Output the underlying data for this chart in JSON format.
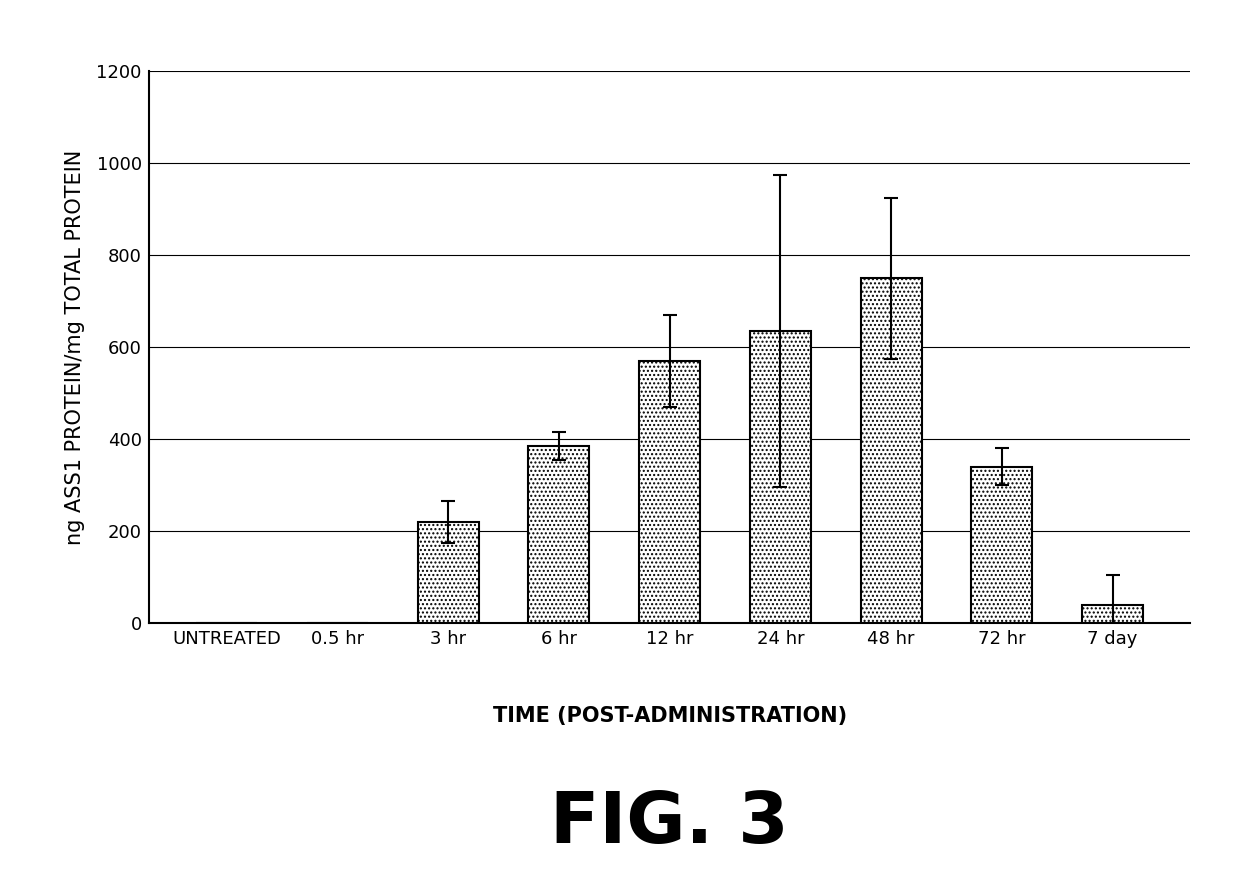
{
  "categories": [
    "UNTREATED",
    "0.5 hr",
    "3 hr",
    "6 hr",
    "12 hr",
    "24 hr",
    "48 hr",
    "72 hr",
    "7 day"
  ],
  "values": [
    0,
    0,
    220,
    385,
    570,
    635,
    750,
    340,
    40
  ],
  "errors": [
    0,
    0,
    45,
    30,
    100,
    340,
    175,
    40,
    65
  ],
  "ylabel": "ng ASS1 PROTEIN/mg TOTAL PROTEIN",
  "xlabel": "TIME (POST-ADMINISTRATION)",
  "fig_label": "FIG. 3",
  "ylim": [
    0,
    1200
  ],
  "yticks": [
    0,
    200,
    400,
    600,
    800,
    1000,
    1200
  ],
  "bar_color": "#ffffff",
  "bar_edge_color": "#000000",
  "background_color": "#ffffff",
  "axis_label_fontsize": 15,
  "tick_fontsize": 13,
  "fig_label_fontsize": 52,
  "xlabel_fontsize": 15
}
